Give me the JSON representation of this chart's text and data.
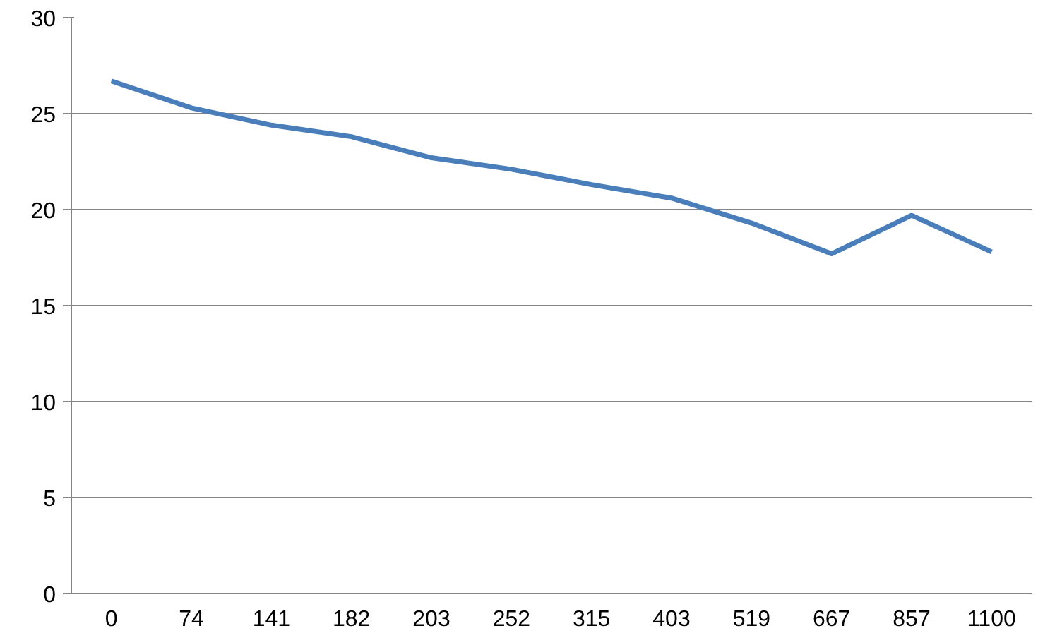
{
  "chart_data": {
    "type": "line",
    "categories": [
      "0",
      "74",
      "141",
      "182",
      "203",
      "252",
      "315",
      "403",
      "519",
      "667",
      "857",
      "1100"
    ],
    "series": [
      {
        "color": "#4a7ebb",
        "values": [
          26.7,
          25.3,
          24.4,
          23.8,
          22.7,
          22.1,
          21.3,
          20.6,
          19.3,
          17.7,
          19.7,
          17.8
        ]
      }
    ],
    "ylim": [
      0,
      30
    ],
    "yticks": [
      0,
      5,
      10,
      15,
      20,
      25,
      30
    ],
    "grid": "y",
    "marker": "none",
    "line_style": "solid"
  }
}
